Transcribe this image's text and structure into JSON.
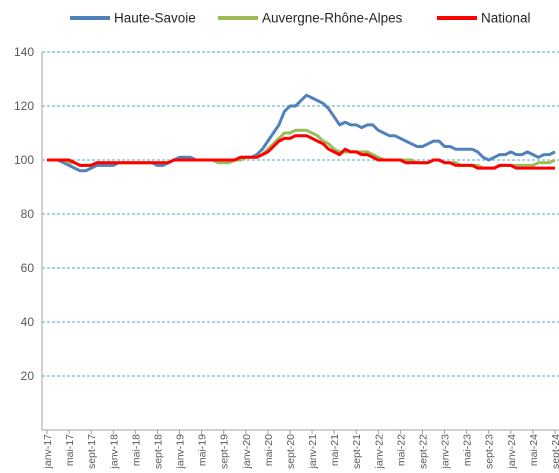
{
  "chart_data": {
    "type": "line",
    "categories": [
      "janv-17",
      null,
      null,
      null,
      "mai-17",
      null,
      null,
      null,
      "sept-17",
      null,
      null,
      null,
      "janv-18",
      null,
      null,
      null,
      "mai-18",
      null,
      null,
      null,
      "sept-18",
      null,
      null,
      null,
      "janv-19",
      null,
      null,
      null,
      "mai-19",
      null,
      null,
      null,
      "sept-19",
      null,
      null,
      null,
      "janv-20",
      null,
      null,
      null,
      "mai-20",
      null,
      null,
      null,
      "sept-20",
      null,
      null,
      null,
      "janv-21",
      null,
      null,
      null,
      "mai-21",
      null,
      null,
      null,
      "sept-21",
      null,
      null,
      null,
      "janv-22",
      null,
      null,
      null,
      "mai-22",
      null,
      null,
      null,
      "sept-22",
      null,
      null,
      null,
      "janv-23",
      null,
      null,
      null,
      "mai-23",
      null,
      null,
      null,
      "sept-23",
      null,
      null,
      null,
      "janv-24",
      null,
      null,
      null,
      "mai-24",
      null,
      null,
      null,
      "sept-24"
    ],
    "series": [
      {
        "name": "Haute-Savoie",
        "color": "#4f81bd",
        "values": [
          100,
          100,
          100,
          99,
          98,
          97,
          96,
          96,
          97,
          98,
          98,
          98,
          98,
          99,
          99,
          99,
          99,
          99,
          99,
          99,
          98,
          98,
          99,
          100,
          101,
          101,
          101,
          100,
          100,
          100,
          100,
          100,
          100,
          100,
          100,
          100,
          101,
          101,
          102,
          104,
          107,
          110,
          113,
          118,
          120,
          120,
          122,
          124,
          123,
          122,
          121,
          119,
          116,
          113,
          114,
          113,
          113,
          112,
          113,
          113,
          111,
          110,
          109,
          109,
          108,
          107,
          106,
          105,
          105,
          106,
          107,
          107,
          105,
          105,
          104,
          104,
          104,
          104,
          103,
          101,
          100,
          101,
          102,
          102,
          103,
          102,
          102,
          103,
          102,
          101,
          102,
          102,
          103
        ]
      },
      {
        "name": "Auvergne-Rhône-Alpes",
        "color": "#9bbb59",
        "values": [
          100,
          100,
          100,
          100,
          99,
          99,
          98,
          98,
          98,
          99,
          99,
          99,
          99,
          99,
          99,
          99,
          99,
          99,
          99,
          99,
          99,
          99,
          99,
          100,
          100,
          100,
          100,
          100,
          100,
          100,
          100,
          99,
          99,
          99,
          100,
          100,
          101,
          101,
          101,
          102,
          104,
          106,
          108,
          110,
          110,
          111,
          111,
          111,
          110,
          109,
          107,
          106,
          104,
          103,
          103,
          103,
          103,
          103,
          103,
          102,
          101,
          100,
          100,
          100,
          100,
          100,
          100,
          99,
          99,
          99,
          100,
          100,
          99,
          99,
          99,
          98,
          98,
          98,
          98,
          97,
          97,
          97,
          98,
          98,
          98,
          98,
          98,
          98,
          98,
          99,
          99,
          99,
          100
        ]
      },
      {
        "name": "National",
        "color": "#ff0000",
        "values": [
          100,
          100,
          100,
          100,
          100,
          99,
          98,
          98,
          98,
          99,
          99,
          99,
          99,
          99,
          99,
          99,
          99,
          99,
          99,
          99,
          99,
          99,
          99,
          100,
          100,
          100,
          100,
          100,
          100,
          100,
          100,
          100,
          100,
          100,
          100,
          101,
          101,
          101,
          101,
          102,
          103,
          105,
          107,
          108,
          108,
          109,
          109,
          109,
          108,
          107,
          106,
          104,
          103,
          102,
          104,
          103,
          103,
          102,
          102,
          101,
          100,
          100,
          100,
          100,
          100,
          99,
          99,
          99,
          99,
          99,
          100,
          100,
          99,
          99,
          98,
          98,
          98,
          98,
          97,
          97,
          97,
          97,
          98,
          98,
          98,
          97,
          97,
          97,
          97,
          97,
          97,
          97,
          97
        ]
      }
    ],
    "ylim": [
      0,
      140
    ],
    "yticks": [
      20,
      40,
      60,
      80,
      100,
      120,
      140
    ],
    "grid": true,
    "legend": "top"
  }
}
